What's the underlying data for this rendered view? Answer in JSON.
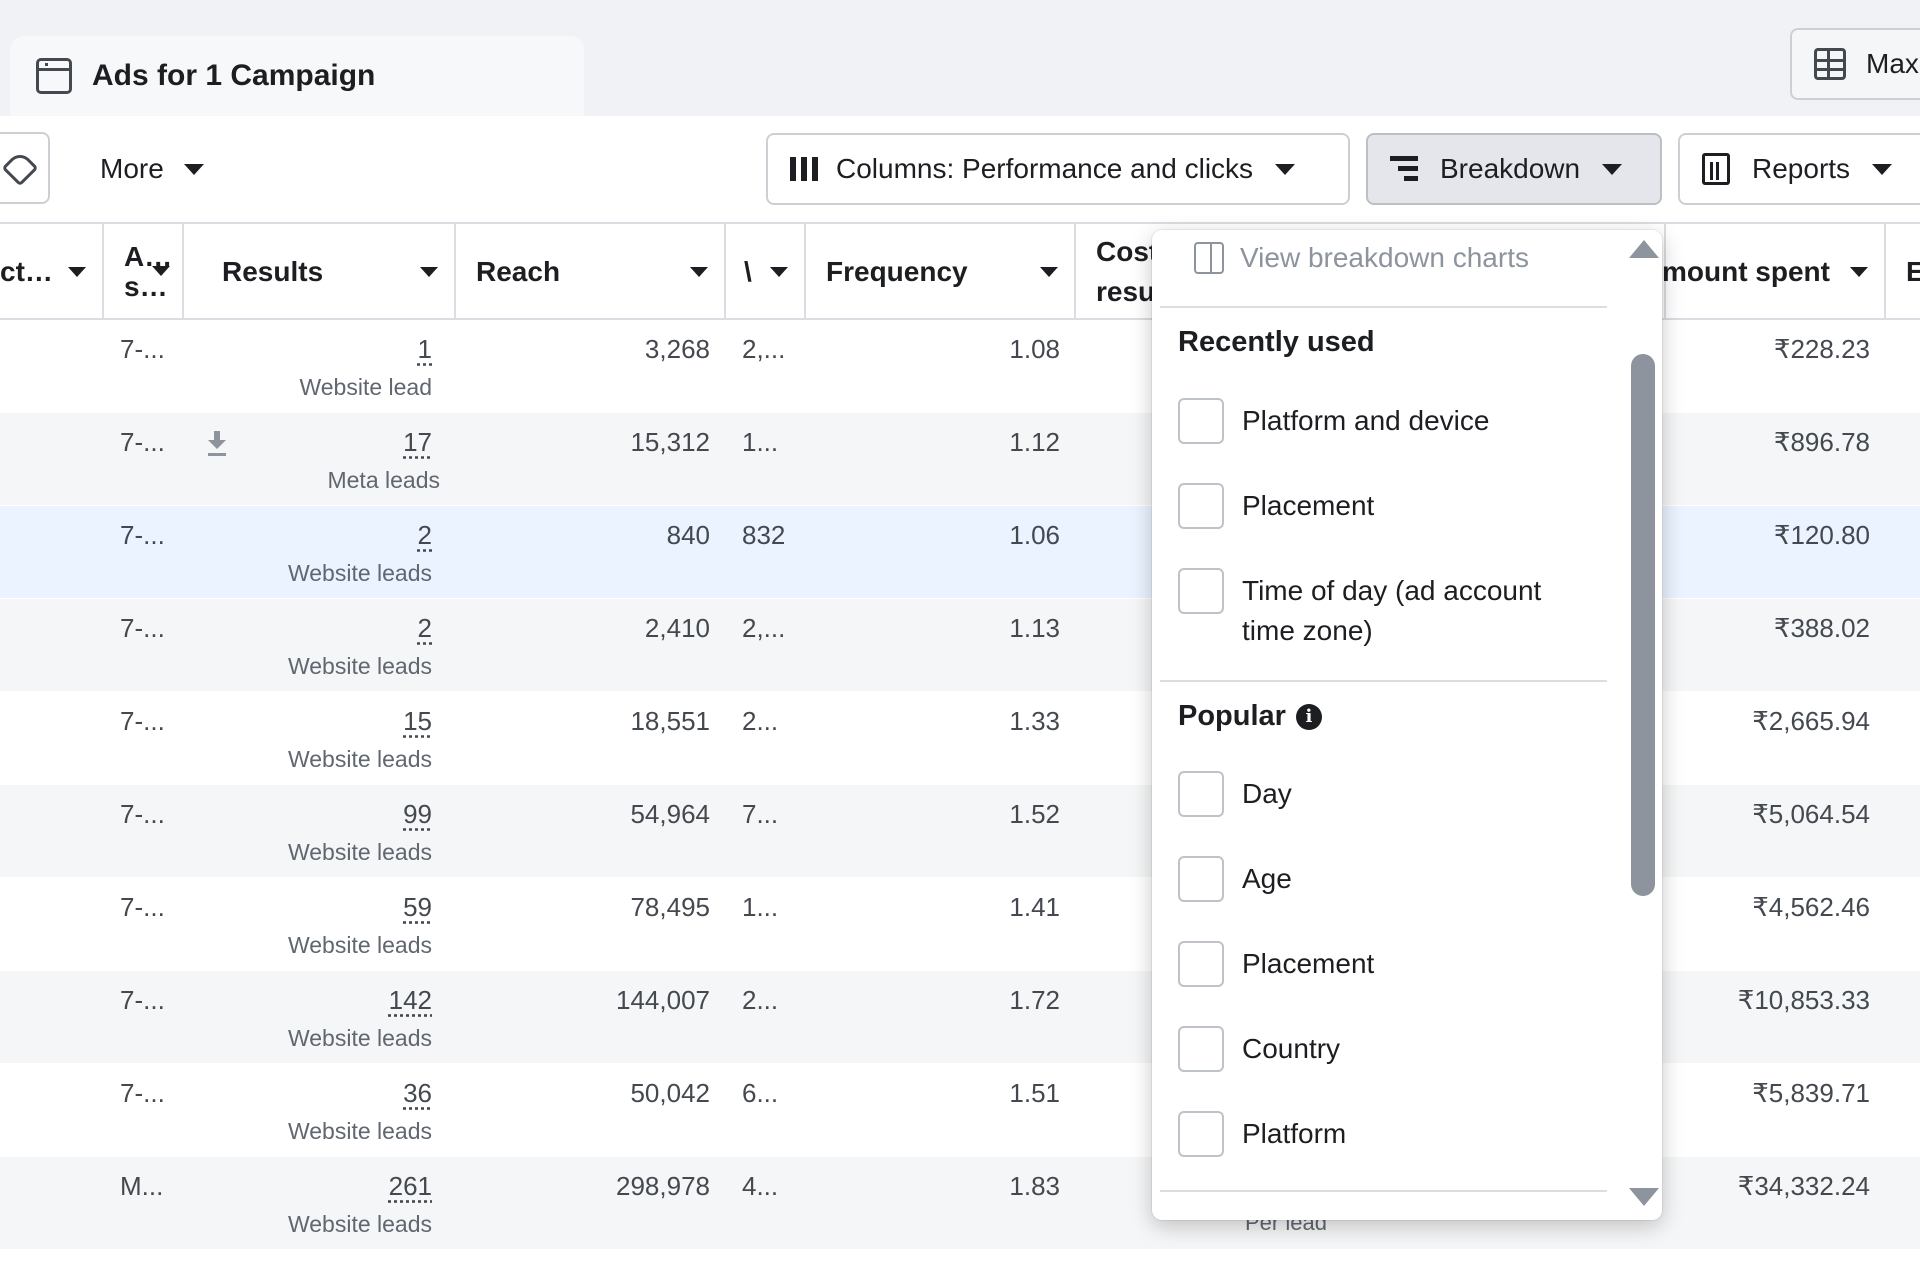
{
  "tab": {
    "title": "Ads for 1 Campaign"
  },
  "header_right": {
    "max_label": "Max"
  },
  "toolbar": {
    "more_label": "More",
    "columns_label": "Columns: Performance and clicks",
    "breakdown_label": "Breakdown",
    "reports_label": "Reports"
  },
  "columns": [
    {
      "label": "ct…"
    },
    {
      "label": "A…\ns…"
    },
    {
      "label": "Results"
    },
    {
      "label": "Reach"
    },
    {
      "label": "\\"
    },
    {
      "label": "Frequency"
    },
    {
      "label": "Cost\nresu"
    },
    {
      "label": "mount spent"
    },
    {
      "label": "E"
    }
  ],
  "rows": [
    {
      "attr": "7-...",
      "results": "1",
      "result_type": "Website lead",
      "reach": "3,268",
      "impr": "2,...",
      "freq": "1.08",
      "spent": "₹228.23",
      "download": false
    },
    {
      "attr": "7-...",
      "results": "17",
      "result_type": "Meta leads",
      "reach": "15,312",
      "impr": "1...",
      "freq": "1.12",
      "spent": "₹896.78",
      "download": true
    },
    {
      "attr": "7-...",
      "results": "2",
      "result_type": "Website leads",
      "reach": "840",
      "impr": "832",
      "freq": "1.06",
      "spent": "₹120.80",
      "download": false
    },
    {
      "attr": "7-...",
      "results": "2",
      "result_type": "Website leads",
      "reach": "2,410",
      "impr": "2,...",
      "freq": "1.13",
      "spent": "₹388.02",
      "download": false
    },
    {
      "attr": "7-...",
      "results": "15",
      "result_type": "Website leads",
      "reach": "18,551",
      "impr": "2...",
      "freq": "1.33",
      "spent": "₹2,665.94",
      "download": false
    },
    {
      "attr": "7-...",
      "results": "99",
      "result_type": "Website leads",
      "reach": "54,964",
      "impr": "7...",
      "freq": "1.52",
      "spent": "₹5,064.54",
      "download": false
    },
    {
      "attr": "7-...",
      "results": "59",
      "result_type": "Website leads",
      "reach": "78,495",
      "impr": "1...",
      "freq": "1.41",
      "spent": "₹4,562.46",
      "download": false
    },
    {
      "attr": "7-...",
      "results": "142",
      "result_type": "Website leads",
      "reach": "144,007",
      "impr": "2...",
      "freq": "1.72",
      "spent": "₹10,853.33",
      "download": false
    },
    {
      "attr": "7-...",
      "results": "36",
      "result_type": "Website leads",
      "reach": "50,042",
      "impr": "6...",
      "freq": "1.51",
      "spent": "₹5,839.71",
      "download": false
    },
    {
      "attr": "M...",
      "results": "261",
      "result_type": "Website leads",
      "reach": "298,978",
      "impr": "4...",
      "freq": "1.83",
      "spent": "₹34,332.24",
      "download": false
    }
  ],
  "footer_peek": "Per lead",
  "breakdown_menu": {
    "view_charts": "View breakdown charts",
    "recently_used_title": "Recently used",
    "recently_used": [
      "Platform and device",
      "Placement",
      "Time of day (ad account time zone)"
    ],
    "popular_title": "Popular",
    "popular": [
      "Day",
      "Age",
      "Placement",
      "Country",
      "Platform"
    ]
  },
  "colors": {
    "row_alt": "#f5f6f7",
    "row_highlight": "#eaf3ff",
    "border": "#dadde1",
    "scroll_thumb": "#8d949e"
  },
  "icons": [
    "calendar-window-icon",
    "table-grid-icon",
    "tag-icon",
    "columns-icon",
    "breakdown-icon",
    "reports-icon",
    "download-icon",
    "chart-panel-icon",
    "info-icon"
  ]
}
